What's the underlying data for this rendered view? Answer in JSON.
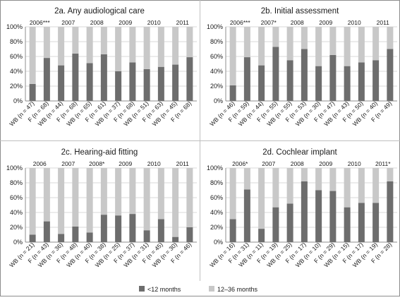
{
  "colors": {
    "lt12": "#6d6d6d",
    "m12_36": "#c8c8c8",
    "grid": "#d9d9d9",
    "axis": "#8c8c8c",
    "border": "#8c8c8c",
    "separator": "#bfbfbf"
  },
  "chart_data": [
    {
      "type": "bar",
      "stacked": true,
      "title": "2a. Any audiological care",
      "ylim": [
        0,
        100
      ],
      "yticks": [
        "0%",
        "20%",
        "40%",
        "60%",
        "80%",
        "100%"
      ],
      "years": [
        "2006***",
        "2007",
        "2008",
        "2009",
        "2010",
        "2011"
      ],
      "categories": [
        "WB (n = 47)",
        "F (n = 68)",
        "WB (n = 44)",
        "F (n = 68)",
        "WB (n = 65)",
        "F (n = 61)",
        "WB (n = 37)",
        "F (n = 68)",
        "WB (n = 51)",
        "F (n = 63)",
        "WB (n = 45)",
        "F (n = 68)"
      ],
      "series": [
        {
          "name": "<12 months",
          "values": [
            23,
            58,
            48,
            64,
            51,
            63,
            40,
            52,
            43,
            46,
            49,
            59
          ]
        },
        {
          "name": "12–36 months",
          "values": [
            77,
            42,
            52,
            36,
            49,
            37,
            60,
            48,
            57,
            54,
            51,
            41
          ]
        }
      ]
    },
    {
      "type": "bar",
      "stacked": true,
      "title": "2b. Initial assessment",
      "ylim": [
        0,
        100
      ],
      "yticks": [
        "0%",
        "20%",
        "40%",
        "60%",
        "80%",
        "100%"
      ],
      "years": [
        "2006***",
        "2007*",
        "2008",
        "2009",
        "2010",
        "2011"
      ],
      "categories": [
        "WB (n = 46)",
        "F (n = 59)",
        "WB (n = 44)",
        "F (n = 55)",
        "WB (n = 55)",
        "F (n = 53)",
        "WB (n = 30)",
        "F (n = 47)",
        "WB (n = 43)",
        "F (n = 50)",
        "WB (n = 40)",
        "F (n = 49)"
      ],
      "series": [
        {
          "name": "<12 months",
          "values": [
            21,
            59,
            48,
            73,
            55,
            70,
            47,
            62,
            47,
            52,
            55,
            70
          ]
        },
        {
          "name": "12–36 months",
          "values": [
            79,
            41,
            52,
            27,
            45,
            30,
            53,
            38,
            53,
            48,
            45,
            30
          ]
        }
      ]
    },
    {
      "type": "bar",
      "stacked": true,
      "title": "2c. Hearing-aid fitting",
      "ylim": [
        0,
        100
      ],
      "yticks": [
        "0%",
        "20%",
        "40%",
        "60%",
        "80%",
        "100%"
      ],
      "years": [
        "2006",
        "2007",
        "2008*",
        "2009",
        "2010",
        "2011"
      ],
      "categories": [
        "WB (n = 21)",
        "F (n = 43)",
        "WB (n = 36)",
        "F (n = 48)",
        "WB (n = 40)",
        "F (n = 38)",
        "WB (n = 25)",
        "F (n = 37)",
        "WB (n = 31)",
        "F (n = 45)",
        "WB (n = 30)",
        "F (n = 46)"
      ],
      "series": [
        {
          "name": "<12 months",
          "values": [
            10,
            28,
            11,
            21,
            13,
            37,
            36,
            38,
            16,
            31,
            7,
            20
          ]
        },
        {
          "name": "12–36 months",
          "values": [
            90,
            72,
            89,
            79,
            87,
            63,
            64,
            62,
            84,
            69,
            93,
            80
          ]
        }
      ]
    },
    {
      "type": "bar",
      "stacked": true,
      "title": "2d. Cochlear implant",
      "ylim": [
        0,
        100
      ],
      "yticks": [
        "0%",
        "20%",
        "40%",
        "60%",
        "80%",
        "100%"
      ],
      "years": [
        "2006*",
        "2007",
        "2008",
        "2009",
        "2010",
        "2011*"
      ],
      "categories": [
        "WB (n = 16)",
        "F (n = 31)",
        "WB (n = 11)",
        "F (n = 19)",
        "WB (n = 25)",
        "F (n = 17)",
        "WB (n = 10)",
        "F (n = 29)",
        "WB (n = 15)",
        "F (n = 17)",
        "WB (n = 19)",
        "F (n = 28)"
      ],
      "series": [
        {
          "name": "<12 months",
          "values": [
            31,
            71,
            18,
            47,
            52,
            82,
            70,
            69,
            47,
            53,
            53,
            82
          ]
        },
        {
          "name": "12–36 months",
          "values": [
            69,
            29,
            82,
            53,
            48,
            18,
            30,
            31,
            53,
            47,
            47,
            18
          ]
        }
      ]
    }
  ],
  "legend": [
    {
      "label": "<12 months",
      "series": 0
    },
    {
      "label": "12–36 months",
      "series": 1
    }
  ]
}
